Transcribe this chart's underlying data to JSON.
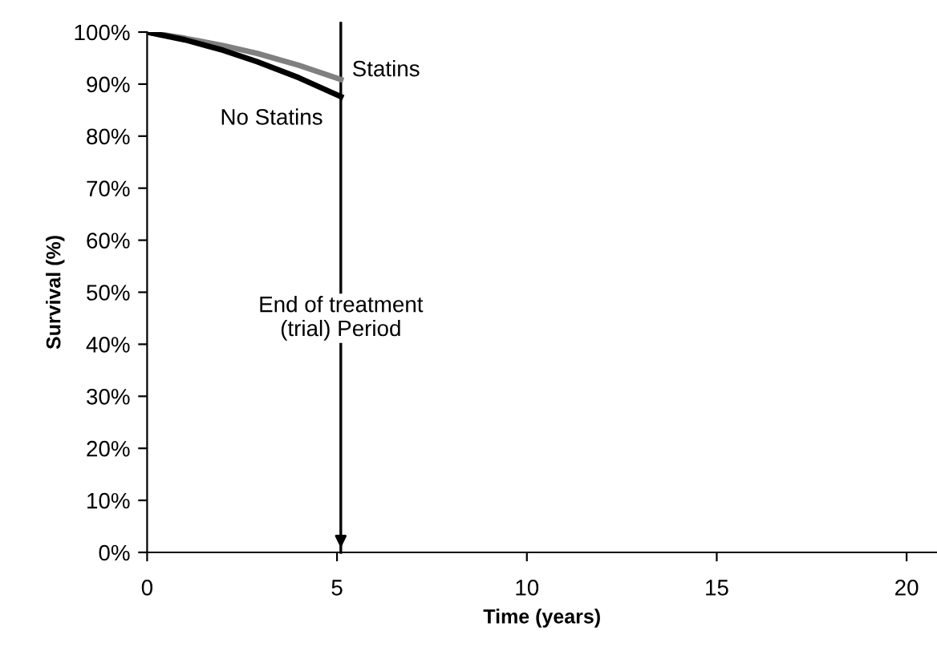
{
  "chart_data": {
    "type": "line",
    "xlabel": "Time (years)",
    "ylabel": "Survival (%)",
    "series": [
      {
        "name": "Statins",
        "color": "#808080",
        "x": [
          0,
          1,
          2,
          2.9,
          4,
          5.1
        ],
        "values": [
          100,
          98.8,
          97.4,
          95.9,
          93.6,
          90.9
        ]
      },
      {
        "name": "No Statins",
        "color": "#000000",
        "x": [
          0,
          1,
          2,
          2.9,
          4,
          5.1
        ],
        "values": [
          100,
          98.5,
          96.5,
          94.3,
          91.2,
          87.6
        ]
      }
    ],
    "xlim": [
      0,
      20.8
    ],
    "xticks": [
      0,
      5,
      10,
      15,
      20
    ],
    "ylim": [
      0,
      100
    ],
    "yticks": [
      {
        "value": 0,
        "label": "0%"
      },
      {
        "value": 10,
        "label": "10%"
      },
      {
        "value": 20,
        "label": "20%"
      },
      {
        "value": 30,
        "label": "30%"
      },
      {
        "value": 40,
        "label": "40%"
      },
      {
        "value": 50,
        "label": "50%"
      },
      {
        "value": 60,
        "label": "60%"
      },
      {
        "value": 70,
        "label": "70%"
      },
      {
        "value": 80,
        "label": "80%"
      },
      {
        "value": 90,
        "label": "90%"
      },
      {
        "value": 100,
        "label": "100%"
      }
    ],
    "ref_lines": [
      {
        "axis": "x",
        "value": 5.1,
        "label": "End of treatment\n(trial) Period",
        "color": "#000000"
      }
    ],
    "grid": false,
    "legend": false,
    "marker": "none",
    "line_style": "solid"
  }
}
